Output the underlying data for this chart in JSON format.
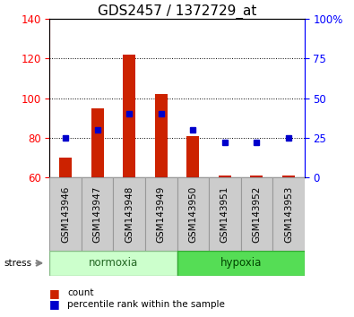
{
  "title": "GDS2457 / 1372729_at",
  "samples": [
    "GSM143946",
    "GSM143947",
    "GSM143948",
    "GSM143949",
    "GSM143950",
    "GSM143951",
    "GSM143952",
    "GSM143953"
  ],
  "counts": [
    70,
    95,
    122,
    102,
    81,
    61,
    61,
    61
  ],
  "count_base": 60,
  "percentile_ranks": [
    25,
    30,
    40,
    40,
    30,
    22,
    22,
    25
  ],
  "ylim_left": [
    60,
    140
  ],
  "ylim_right": [
    0,
    100
  ],
  "yticks_left": [
    60,
    80,
    100,
    120,
    140
  ],
  "yticks_right": [
    0,
    25,
    50,
    75,
    100
  ],
  "ytick_labels_right": [
    "0",
    "25",
    "50",
    "75",
    "100%"
  ],
  "bar_color": "#cc2200",
  "dot_color": "#0000cc",
  "normoxia_color_light": "#ccffcc",
  "normoxia_color_border": "#88bb88",
  "hypoxia_color": "#55dd55",
  "hypoxia_color_border": "#33aa33",
  "sample_box_color": "#cccccc",
  "sample_box_border": "#999999",
  "stress_label": "stress",
  "legend_count": "count",
  "legend_pct": "percentile rank within the sample",
  "title_fontsize": 11,
  "tick_fontsize": 8.5,
  "dotted_ticks": [
    80,
    100,
    120
  ]
}
